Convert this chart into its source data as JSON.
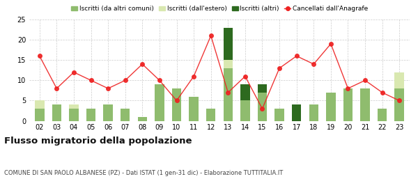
{
  "years": [
    "02",
    "03",
    "04",
    "05",
    "06",
    "07",
    "08",
    "09",
    "10",
    "11",
    "12",
    "13",
    "14",
    "15",
    "16",
    "17",
    "18",
    "19",
    "20",
    "21",
    "22",
    "23"
  ],
  "iscritti_altri_comuni": [
    3,
    4,
    3,
    3,
    4,
    3,
    1,
    9,
    8,
    6,
    3,
    13,
    5,
    7,
    3,
    0,
    4,
    7,
    8,
    8,
    3,
    8
  ],
  "iscritti_estero": [
    2,
    0,
    1,
    0,
    0,
    0,
    0,
    0,
    0,
    0,
    0,
    2,
    0,
    0,
    0,
    0,
    0,
    0,
    0,
    0,
    0,
    4
  ],
  "iscritti_altri": [
    0,
    0,
    0,
    0,
    0,
    0,
    0,
    0,
    0,
    0,
    0,
    8,
    4,
    2,
    0,
    4,
    0,
    0,
    0,
    0,
    0,
    0
  ],
  "cancellati": [
    16,
    8,
    12,
    10,
    8,
    10,
    14,
    10,
    5,
    11,
    21,
    7,
    11,
    3,
    13,
    16,
    14,
    19,
    8,
    10,
    7,
    5
  ],
  "color_altri_comuni": "#8fbc6e",
  "color_estero": "#d9e8b0",
  "color_altri": "#2d6a1f",
  "color_cancellati": "#ee2222",
  "title": "Flusso migratorio della popolazione",
  "subtitle": "COMUNE DI SAN PAOLO ALBANESE (PZ) - Dati ISTAT (1 gen-31 dic) - Elaborazione TUTTITALIA.IT",
  "legend_labels": [
    "Iscritti (da altri comuni)",
    "Iscritti (dall'estero)",
    "Iscritti (altri)",
    "Cancellati dall'Anagrafe"
  ],
  "ylim": [
    0,
    25
  ],
  "yticks": [
    0,
    5,
    10,
    15,
    20,
    25
  ],
  "bg_color": "#ffffff",
  "grid_color": "#cccccc"
}
